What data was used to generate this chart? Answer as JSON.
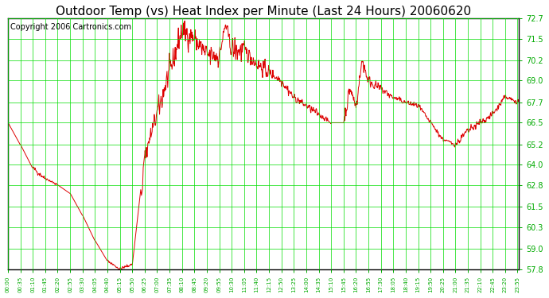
{
  "title": "Outdoor Temp (vs) Heat Index per Minute (Last 24 Hours) 20060620",
  "copyright": "Copyright 2006 Cartronics.com",
  "background_color": "#ffffff",
  "plot_bg_color": "#ffffff",
  "grid_color": "#00dd00",
  "line_color": "#dd0000",
  "text_color": "#000000",
  "yticks": [
    57.8,
    59.0,
    60.3,
    61.5,
    62.8,
    64.0,
    65.2,
    66.5,
    67.7,
    69.0,
    70.2,
    71.5,
    72.7
  ],
  "ymin": 57.8,
  "ymax": 72.7,
  "tick_color": "#00aa00",
  "title_fontsize": 11,
  "copyright_fontsize": 7,
  "xtick_interval_min": 35,
  "figwidth": 6.9,
  "figheight": 3.75,
  "dpi": 100
}
